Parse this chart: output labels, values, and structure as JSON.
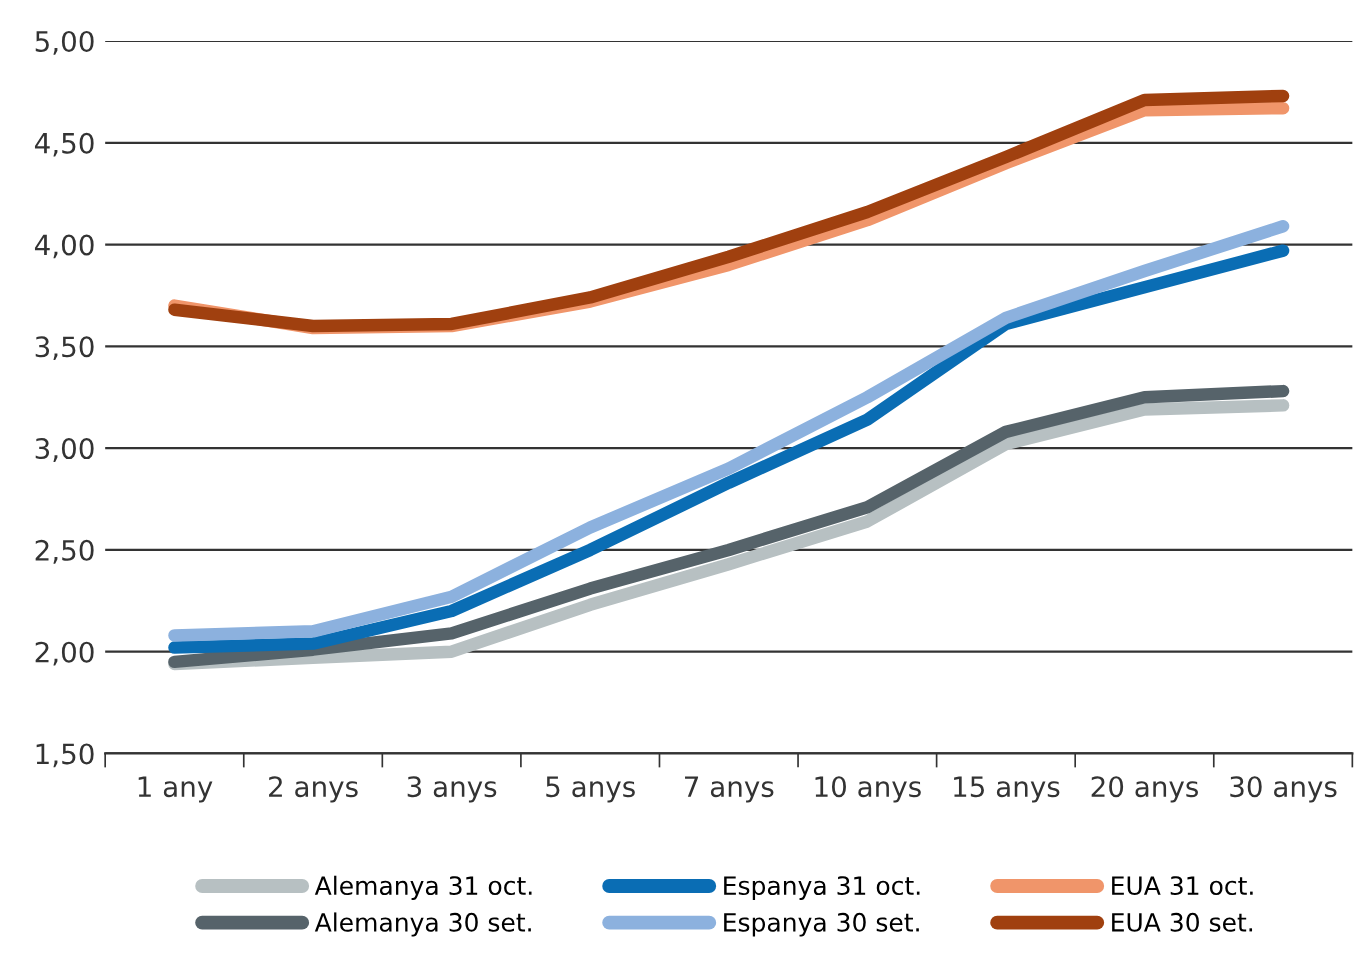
{
  "chart_data": {
    "type": "line",
    "categories": [
      "1 any",
      "2 anys",
      "3 anys",
      "5 anys",
      "7 anys",
      "10 anys",
      "15 anys",
      "20 anys",
      "30 anys"
    ],
    "series": [
      {
        "name": "Alemanya 31 oct.",
        "color": "#b7c0c2",
        "values": [
          1.94,
          1.97,
          2.0,
          2.23,
          2.43,
          2.64,
          3.02,
          3.19,
          3.21
        ]
      },
      {
        "name": "Alemanya 30 set.",
        "color": "#56636a",
        "values": [
          1.95,
          2.01,
          2.09,
          2.31,
          2.5,
          2.71,
          3.08,
          3.25,
          3.28
        ]
      },
      {
        "name": "Espanya 31 oct.",
        "color": "#0a6db4",
        "values": [
          2.02,
          2.04,
          2.2,
          2.5,
          2.83,
          3.14,
          3.61,
          3.79,
          3.97
        ]
      },
      {
        "name": "Espanya 30 set.",
        "color": "#8cb1de",
        "values": [
          2.08,
          2.1,
          2.27,
          2.61,
          2.9,
          3.25,
          3.64,
          3.87,
          4.09
        ]
      },
      {
        "name": "EUA 31 oct.",
        "color": "#f0956a",
        "values": [
          3.7,
          3.59,
          3.6,
          3.72,
          3.9,
          4.12,
          4.4,
          4.66,
          4.67
        ]
      },
      {
        "name": "EUA 30 set.",
        "color": "#a0400f",
        "values": [
          3.68,
          3.6,
          3.61,
          3.74,
          3.94,
          4.16,
          4.43,
          4.71,
          4.73
        ]
      }
    ],
    "ylim": [
      1.5,
      5.0
    ],
    "yticks": [
      {
        "value": 1.5,
        "label": "1,50"
      },
      {
        "value": 2.0,
        "label": "2,00"
      },
      {
        "value": 2.5,
        "label": "2,50"
      },
      {
        "value": 3.0,
        "label": "3,00"
      },
      {
        "value": 3.5,
        "label": "3,50"
      },
      {
        "value": 4.0,
        "label": "4,00"
      },
      {
        "value": 4.5,
        "label": "4,50"
      },
      {
        "value": 5.0,
        "label": "5,00"
      }
    ],
    "grid": "y",
    "legend": "bottom",
    "marker": "none",
    "line_style": "solid"
  }
}
